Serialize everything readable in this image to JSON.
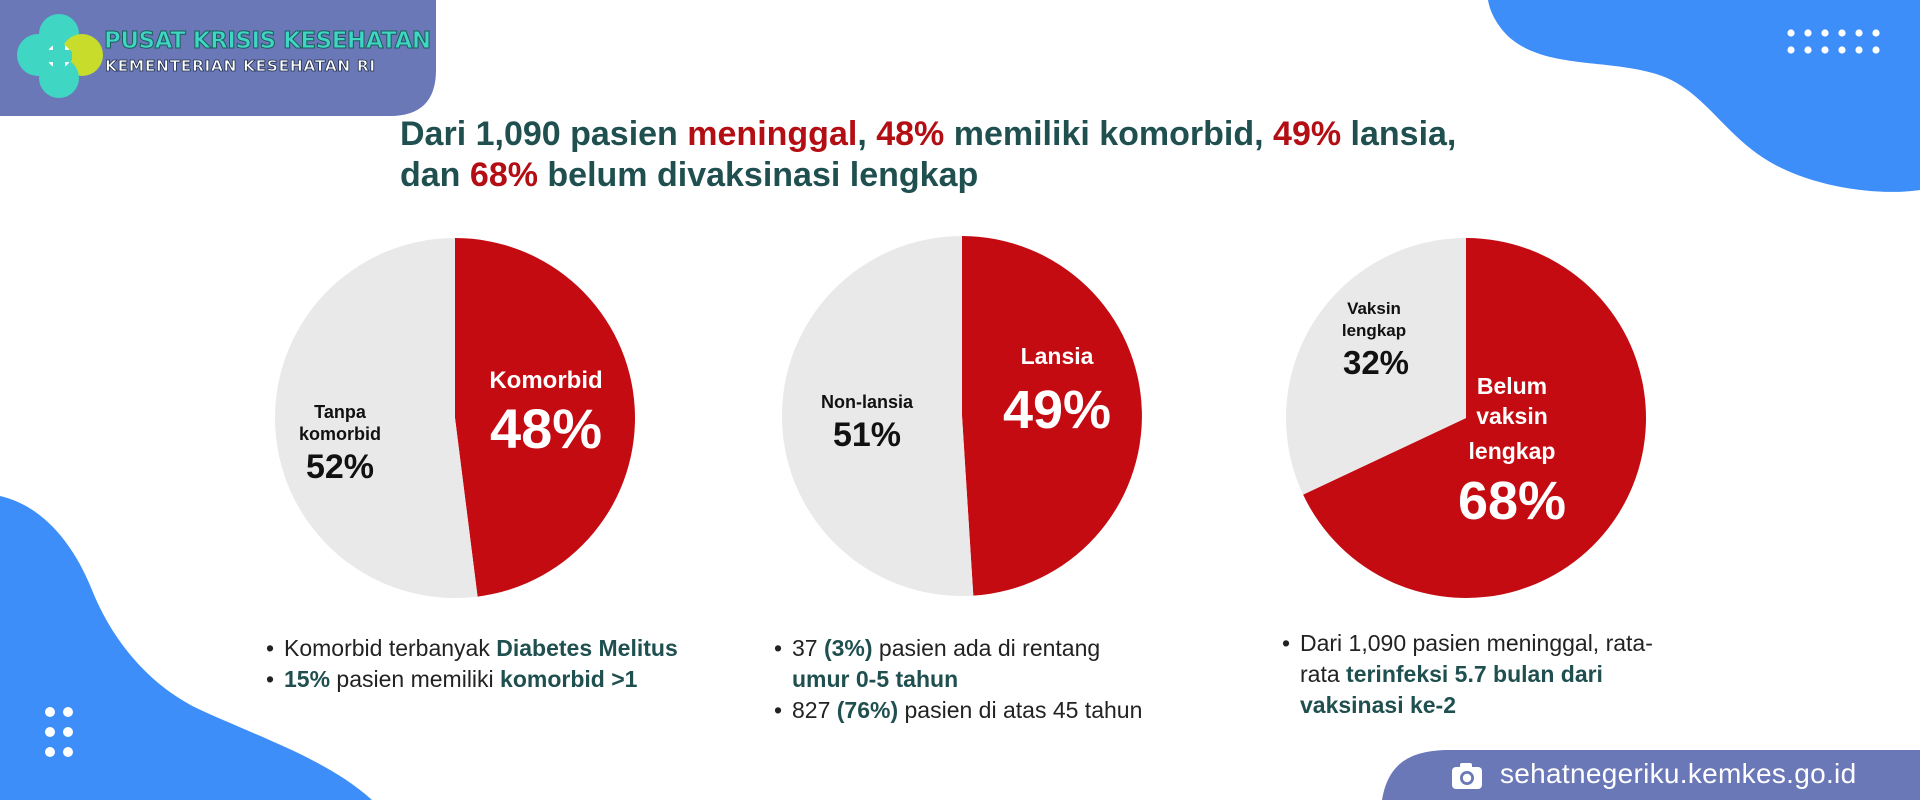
{
  "brand": {
    "line1": "PUSAT KRISIS KESEHATAN",
    "line2": "KEMENTERIAN KESEHATAN RI"
  },
  "headline": {
    "p1": "Dari 1,090 pasien ",
    "p2": "meninggal",
    "p3": ", ",
    "p4": "48%",
    "p5": " memiliki komorbid, ",
    "p6": "49%",
    "p7": " lansia,",
    "p8": "dan ",
    "p9": "68%",
    "p10": " belum divaksinasi lengkap"
  },
  "colors": {
    "red": "#c40b12",
    "grey": "#e9e9e9",
    "blue": "#3d8ef8",
    "navy": "#6b78b8",
    "teal": "#1f4f4f"
  },
  "chart_data": [
    {
      "type": "pie",
      "slices": [
        {
          "label": "Komorbid",
          "value": 48,
          "display": "48%"
        },
        {
          "label": "Tanpa komorbid",
          "value": 52,
          "display": "52%"
        }
      ]
    },
    {
      "type": "pie",
      "slices": [
        {
          "label": "Lansia",
          "value": 49,
          "display": "49%"
        },
        {
          "label": "Non-lansia",
          "value": 51,
          "display": "51%"
        }
      ]
    },
    {
      "type": "pie",
      "slices": [
        {
          "label": "Belum vaksin lengkap",
          "value": 68,
          "display": "68%"
        },
        {
          "label": "Vaksin lengkap",
          "value": 32,
          "display": "32%"
        }
      ]
    }
  ],
  "pie_labels": {
    "c1_red_label": "Komorbid",
    "c1_red_pct": "48%",
    "c1_grey_l1": "Tanpa",
    "c1_grey_l2": "komorbid",
    "c1_grey_pct": "52%",
    "c2_red_label": "Lansia",
    "c2_red_pct": "49%",
    "c2_grey_label": "Non-lansia",
    "c2_grey_pct": "51%",
    "c3_red_l1": "Belum",
    "c3_red_l2": "vaksin",
    "c3_red_l3": "lengkap",
    "c3_red_pct": "68%",
    "c3_grey_l1": "Vaksin",
    "c3_grey_l2": "lengkap",
    "c3_grey_pct": "32%"
  },
  "notes": {
    "n1a_t": "Komorbid terbanyak ",
    "n1a_hl": "Diabetes Melitus",
    "n1b_hl1": "15%",
    "n1b_t": " pasien memiliki ",
    "n1b_hl2": "komorbid >1",
    "n2a_t1": "37 ",
    "n2a_hl1": "(3%)",
    "n2a_t2": " pasien ada di rentang ",
    "n2a_hl2": "umur 0-5 tahun",
    "n2b_t1": "827 ",
    "n2b_hl": "(76%)",
    "n2b_t2": " pasien di atas 45 tahun",
    "n3_t": "Dari 1,090 pasien meninggal, rata-rata ",
    "n3_hl": "terinfeksi 5.7 bulan dari vaksinasi ke-2"
  },
  "footer": {
    "icon": "camera-icon",
    "text": "sehatnegeriku.kemkes.go.id"
  }
}
